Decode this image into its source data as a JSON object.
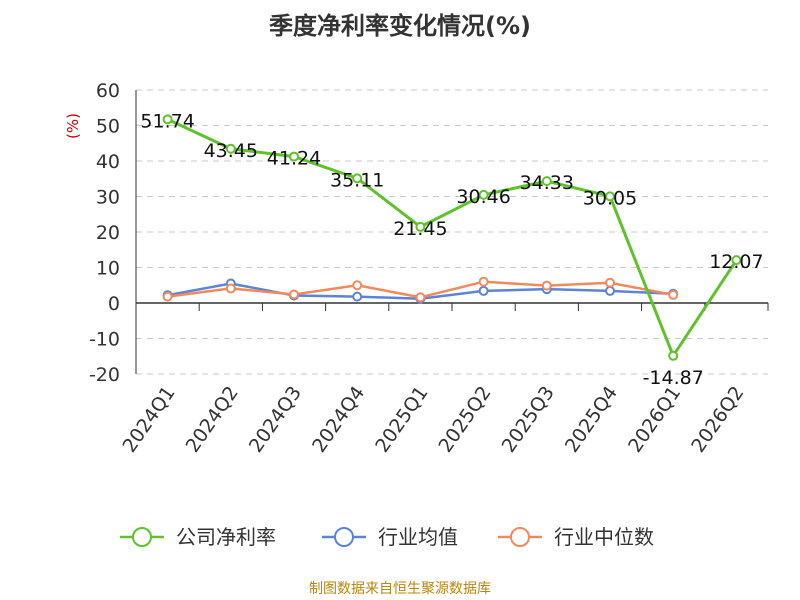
{
  "chart_data": {
    "type": "line",
    "title": "季度净利率变化情况(%)",
    "ylabel": "(%)",
    "xlabel": "",
    "categories": [
      "2024Q1",
      "2024Q2",
      "2024Q3",
      "2024Q4",
      "2025Q1",
      "2025Q2",
      "2025Q3",
      "2025Q4",
      "2026Q1",
      "2026Q2"
    ],
    "ylim": [
      -20,
      60
    ],
    "yticks": [
      60,
      50,
      40,
      30,
      20,
      10,
      0,
      -10,
      -20
    ],
    "grid": true,
    "legend_position": "bottom",
    "series": [
      {
        "name": "公司净利率",
        "color": "#5ec22a",
        "values": [
          51.74,
          43.45,
          41.24,
          35.11,
          21.45,
          30.46,
          34.33,
          30.05,
          -14.87,
          12.07
        ],
        "labels": [
          "51.74",
          "43.45",
          "41.24",
          "35.11",
          "21.45",
          "30.46",
          "34.33",
          "30.05",
          "-14.87",
          "12.07"
        ]
      },
      {
        "name": "行业均值",
        "color": "#5b84d6",
        "values": [
          2.2,
          5.5,
          2.1,
          1.8,
          1.2,
          3.4,
          3.9,
          3.4,
          2.6,
          null
        ]
      },
      {
        "name": "行业中位数",
        "color": "#f08a5d",
        "values": [
          1.8,
          4.1,
          2.4,
          5.0,
          1.6,
          6.0,
          4.9,
          5.7,
          2.3,
          null
        ]
      }
    ]
  },
  "source": "制图数据来自恒生聚源数据库"
}
